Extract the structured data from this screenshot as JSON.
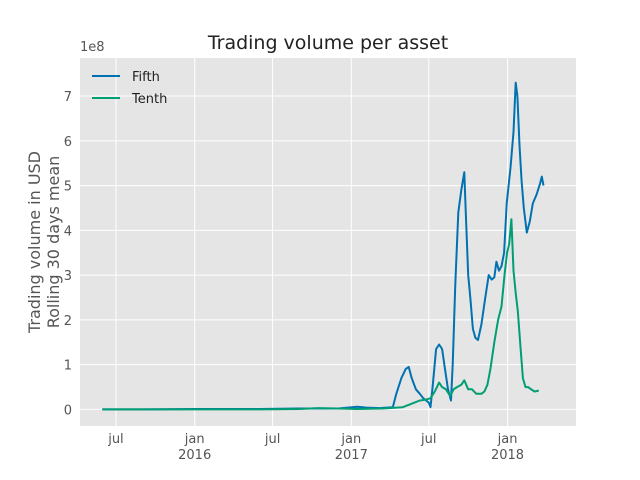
{
  "chart_data": {
    "type": "line",
    "title": "Trading volume per asset",
    "ylabel_lines": [
      "Trading volume in USD",
      "Rolling 30 days mean"
    ],
    "y_multiplier": "1e8",
    "y_ticks": [
      0,
      1,
      2,
      3,
      4,
      5,
      6,
      7
    ],
    "y_tick_labels": [
      "0",
      "1",
      "2",
      "3",
      "4",
      "5",
      "6",
      "7"
    ],
    "ylim": [
      -0.37,
      7.85
    ],
    "xlim": [
      "2015-04-08",
      "2018-06-10"
    ],
    "x_ticks": [
      {
        "date": "2015-07-01",
        "label": "jul",
        "year": ""
      },
      {
        "date": "2016-01-01",
        "label": "jan",
        "year": "2016"
      },
      {
        "date": "2016-07-01",
        "label": "jul",
        "year": ""
      },
      {
        "date": "2017-01-01",
        "label": "jan",
        "year": "2017"
      },
      {
        "date": "2017-07-01",
        "label": "jul",
        "year": ""
      },
      {
        "date": "2018-01-01",
        "label": "jan",
        "year": "2018"
      }
    ],
    "grid": true,
    "legend_position": "top-left",
    "series": [
      {
        "name": "Fifth",
        "color": "#0072B2",
        "points": [
          [
            "2015-05-30",
            0.0
          ],
          [
            "2015-09-01",
            0.0
          ],
          [
            "2016-01-01",
            0.01
          ],
          [
            "2016-06-01",
            0.01
          ],
          [
            "2016-09-01",
            0.02
          ],
          [
            "2016-12-01",
            0.02
          ],
          [
            "2017-01-15",
            0.06
          ],
          [
            "2017-02-05",
            0.04
          ],
          [
            "2017-03-10",
            0.03
          ],
          [
            "2017-04-08",
            0.05
          ],
          [
            "2017-04-16",
            0.35
          ],
          [
            "2017-04-28",
            0.7
          ],
          [
            "2017-05-08",
            0.9
          ],
          [
            "2017-05-15",
            0.95
          ],
          [
            "2017-05-22",
            0.7
          ],
          [
            "2017-06-01",
            0.45
          ],
          [
            "2017-06-10",
            0.35
          ],
          [
            "2017-06-18",
            0.25
          ],
          [
            "2017-06-25",
            0.2
          ],
          [
            "2017-07-01",
            0.15
          ],
          [
            "2017-07-05",
            0.05
          ],
          [
            "2017-07-10",
            0.5
          ],
          [
            "2017-07-18",
            1.35
          ],
          [
            "2017-07-25",
            1.45
          ],
          [
            "2017-08-01",
            1.35
          ],
          [
            "2017-08-08",
            0.9
          ],
          [
            "2017-08-15",
            0.45
          ],
          [
            "2017-08-22",
            0.2
          ],
          [
            "2017-08-26",
            1.0
          ],
          [
            "2017-09-01",
            2.8
          ],
          [
            "2017-09-08",
            4.4
          ],
          [
            "2017-09-15",
            4.9
          ],
          [
            "2017-09-22",
            5.3
          ],
          [
            "2017-09-25",
            4.5
          ],
          [
            "2017-10-01",
            3.0
          ],
          [
            "2017-10-06",
            2.5
          ],
          [
            "2017-10-12",
            1.8
          ],
          [
            "2017-10-18",
            1.6
          ],
          [
            "2017-10-24",
            1.55
          ],
          [
            "2017-11-01",
            1.9
          ],
          [
            "2017-11-10",
            2.5
          ],
          [
            "2017-11-18",
            3.0
          ],
          [
            "2017-11-25",
            2.9
          ],
          [
            "2017-12-01",
            2.95
          ],
          [
            "2017-12-06",
            3.3
          ],
          [
            "2017-12-12",
            3.1
          ],
          [
            "2017-12-18",
            3.2
          ],
          [
            "2017-12-24",
            3.5
          ],
          [
            "2017-12-30",
            4.6
          ],
          [
            "2018-01-08",
            5.4
          ],
          [
            "2018-01-15",
            6.2
          ],
          [
            "2018-01-20",
            7.3
          ],
          [
            "2018-01-24",
            7.0
          ],
          [
            "2018-01-29",
            5.9
          ],
          [
            "2018-02-03",
            5.1
          ],
          [
            "2018-02-08",
            4.5
          ],
          [
            "2018-02-15",
            3.95
          ],
          [
            "2018-02-22",
            4.2
          ],
          [
            "2018-03-01",
            4.6
          ],
          [
            "2018-03-10",
            4.8
          ],
          [
            "2018-03-18",
            5.05
          ],
          [
            "2018-03-22",
            5.2
          ],
          [
            "2018-03-26",
            5.0
          ]
        ]
      },
      {
        "name": "Tenth",
        "color": "#009E73",
        "points": [
          [
            "2015-05-30",
            0.0
          ],
          [
            "2016-01-01",
            0.0
          ],
          [
            "2016-06-01",
            0.0
          ],
          [
            "2016-09-01",
            0.01
          ],
          [
            "2016-10-15",
            0.03
          ],
          [
            "2016-12-01",
            0.02
          ],
          [
            "2017-01-15",
            0.01
          ],
          [
            "2017-03-15",
            0.02
          ],
          [
            "2017-05-01",
            0.05
          ],
          [
            "2017-05-20",
            0.12
          ],
          [
            "2017-06-10",
            0.2
          ],
          [
            "2017-06-25",
            0.22
          ],
          [
            "2017-07-05",
            0.25
          ],
          [
            "2017-07-15",
            0.4
          ],
          [
            "2017-07-25",
            0.6
          ],
          [
            "2017-08-01",
            0.5
          ],
          [
            "2017-08-10",
            0.45
          ],
          [
            "2017-08-20",
            0.3
          ],
          [
            "2017-08-28",
            0.45
          ],
          [
            "2017-09-05",
            0.5
          ],
          [
            "2017-09-15",
            0.55
          ],
          [
            "2017-09-22",
            0.65
          ],
          [
            "2017-10-01",
            0.45
          ],
          [
            "2017-10-10",
            0.45
          ],
          [
            "2017-10-20",
            0.35
          ],
          [
            "2017-11-01",
            0.35
          ],
          [
            "2017-11-08",
            0.4
          ],
          [
            "2017-11-15",
            0.55
          ],
          [
            "2017-11-22",
            0.9
          ],
          [
            "2017-12-01",
            1.5
          ],
          [
            "2017-12-10",
            2.0
          ],
          [
            "2017-12-18",
            2.3
          ],
          [
            "2017-12-25",
            3.0
          ],
          [
            "2017-12-31",
            3.5
          ],
          [
            "2018-01-05",
            3.7
          ],
          [
            "2018-01-10",
            4.25
          ],
          [
            "2018-01-15",
            3.1
          ],
          [
            "2018-01-20",
            2.6
          ],
          [
            "2018-01-25",
            2.2
          ],
          [
            "2018-02-01",
            1.3
          ],
          [
            "2018-02-06",
            0.7
          ],
          [
            "2018-02-12",
            0.5
          ],
          [
            "2018-02-18",
            0.5
          ],
          [
            "2018-02-25",
            0.45
          ],
          [
            "2018-03-05",
            0.4
          ],
          [
            "2018-03-15",
            0.42
          ]
        ]
      }
    ]
  }
}
